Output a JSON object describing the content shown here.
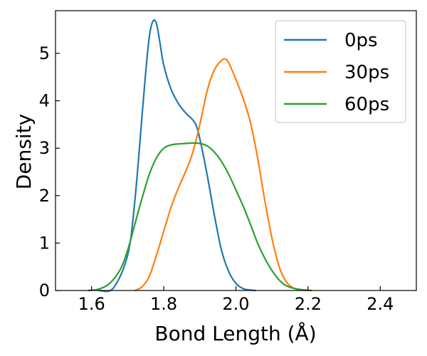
{
  "chart_data": {
    "type": "line",
    "title": "",
    "xlabel": "Bond Length (Å)",
    "ylabel": "Density",
    "xlim": [
      1.5,
      2.5
    ],
    "ylim": [
      0,
      5.9
    ],
    "xticks": [
      1.6,
      1.8,
      2.0,
      2.2,
      2.4
    ],
    "xtick_labels": [
      "1.6",
      "1.8",
      "2.0",
      "2.2",
      "2.4"
    ],
    "yticks": [
      0,
      1,
      2,
      3,
      4,
      5
    ],
    "ytick_labels": [
      "0",
      "1",
      "2",
      "3",
      "4",
      "5"
    ],
    "grid": false,
    "legend_position": "top-right",
    "series": [
      {
        "name": "0ps",
        "color": "#1f77b4",
        "x": [
          1.62,
          1.66,
          1.7,
          1.72,
          1.74,
          1.75,
          1.76,
          1.77,
          1.78,
          1.79,
          1.8,
          1.82,
          1.84,
          1.86,
          1.88,
          1.89,
          1.9,
          1.92,
          1.94,
          1.96,
          1.98,
          2.0,
          2.02,
          2.04,
          2.055
        ],
        "y": [
          0.0,
          0.05,
          0.75,
          1.9,
          3.7,
          4.6,
          5.35,
          5.68,
          5.62,
          5.2,
          4.75,
          4.25,
          3.95,
          3.75,
          3.6,
          3.48,
          3.2,
          2.45,
          1.6,
          0.85,
          0.4,
          0.15,
          0.04,
          0.01,
          0.0
        ]
      },
      {
        "name": "30ps",
        "color": "#ff7f0e",
        "x": [
          1.72,
          1.74,
          1.76,
          1.78,
          1.8,
          1.82,
          1.84,
          1.86,
          1.88,
          1.9,
          1.92,
          1.94,
          1.96,
          1.97,
          1.98,
          2.0,
          2.02,
          2.04,
          2.06,
          2.08,
          2.1,
          2.12,
          2.14,
          2.16,
          2.18,
          2.2
        ],
        "y": [
          0.0,
          0.08,
          0.3,
          0.75,
          1.25,
          1.75,
          2.15,
          2.5,
          2.9,
          3.5,
          4.2,
          4.65,
          4.85,
          4.88,
          4.8,
          4.45,
          4.05,
          3.55,
          2.8,
          1.9,
          1.1,
          0.5,
          0.18,
          0.05,
          0.01,
          0.0
        ]
      },
      {
        "name": "60ps",
        "color": "#2ca02c",
        "x": [
          1.59,
          1.62,
          1.65,
          1.68,
          1.7,
          1.72,
          1.74,
          1.76,
          1.78,
          1.8,
          1.82,
          1.84,
          1.86,
          1.88,
          1.9,
          1.92,
          1.94,
          1.96,
          1.98,
          2.0,
          2.02,
          2.04,
          2.06,
          2.08,
          2.1,
          2.12,
          2.14,
          2.17,
          2.21
        ],
        "y": [
          0.0,
          0.03,
          0.15,
          0.45,
          0.85,
          1.4,
          1.95,
          2.45,
          2.8,
          3.0,
          3.07,
          3.09,
          3.1,
          3.11,
          3.1,
          3.05,
          2.92,
          2.72,
          2.45,
          2.12,
          1.78,
          1.4,
          1.0,
          0.68,
          0.42,
          0.22,
          0.1,
          0.03,
          0.0
        ]
      }
    ]
  }
}
